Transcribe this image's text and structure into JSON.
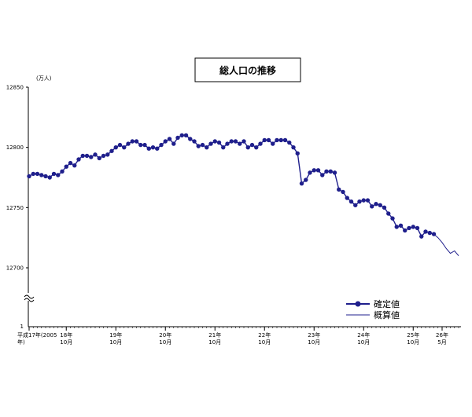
{
  "chart_data": {
    "type": "line",
    "title": "総人口の推移",
    "unit_label": "(万人)",
    "ylim": [
      12650,
      12850
    ],
    "y_ticks": [
      "12850",
      "12800",
      "12750",
      "12700"
    ],
    "y_zero_label": "1",
    "x_tick_labels": [
      {
        "top": "平成17年(2005",
        "bottom": "年)"
      },
      {
        "top": "18年",
        "bottom": "10月"
      },
      {
        "top": "19年",
        "bottom": "10月"
      },
      {
        "top": "20年",
        "bottom": "10月"
      },
      {
        "top": "21年",
        "bottom": "10月"
      },
      {
        "top": "22年",
        "bottom": "10月"
      },
      {
        "top": "23年",
        "bottom": "10月"
      },
      {
        "top": "24年",
        "bottom": "10月"
      },
      {
        "top": "25年",
        "bottom": "10月"
      },
      {
        "top": "26年",
        "bottom": "5月"
      }
    ],
    "series": [
      {
        "name": "確定値",
        "marker": true,
        "values": [
          12776,
          12778,
          12778,
          12777,
          12776,
          12775,
          12778,
          12777,
          12780,
          12784,
          12787,
          12785,
          12790,
          12793,
          12793,
          12792,
          12794,
          12791,
          12793,
          12794,
          12797,
          12800,
          12802,
          12800,
          12803,
          12805,
          12805,
          12802,
          12802,
          12799,
          12800,
          12799,
          12802,
          12805,
          12807,
          12803,
          12808,
          12810,
          12810,
          12807,
          12805,
          12801,
          12802,
          12800,
          12803,
          12805,
          12804,
          12800,
          12803,
          12805,
          12805,
          12803,
          12805,
          12800,
          12802,
          12800,
          12803,
          12806,
          12806,
          12803,
          12806,
          12806,
          12806,
          12804,
          12800,
          12795,
          12770,
          12773,
          12779,
          12781,
          12781,
          12777,
          12780,
          12780,
          12779,
          12765,
          12763,
          12758,
          12755,
          12752,
          12755,
          12756,
          12756,
          12751,
          12753,
          12752,
          12750,
          12745,
          12741,
          12734,
          12735,
          12731,
          12733,
          12734,
          12733,
          12726,
          12730,
          12729,
          12728
        ]
      },
      {
        "name": "概算値",
        "marker": false,
        "values": [
          12728,
          12725,
          12721,
          12716,
          12712,
          12714,
          12710
        ]
      }
    ],
    "colors": {
      "series": "#1f1f8c",
      "axis": "#000000"
    }
  }
}
